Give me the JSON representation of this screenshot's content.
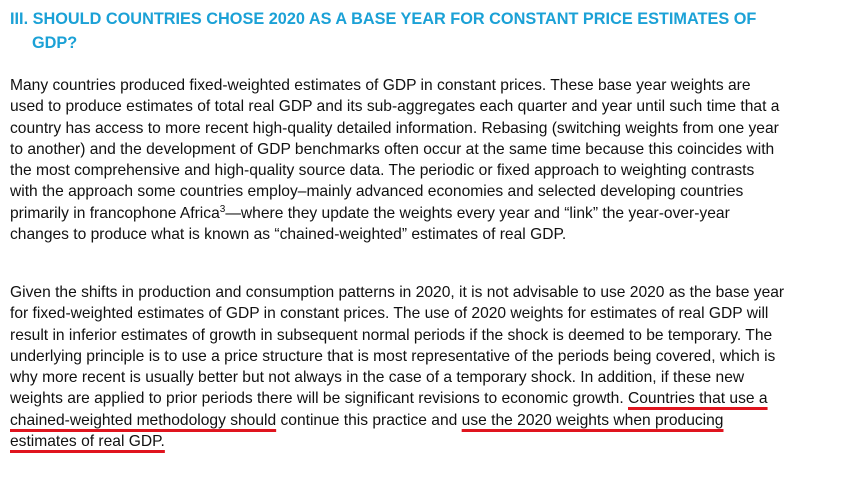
{
  "heading": {
    "line1": "III. SHOULD COUNTRIES CHOSE 2020 AS A BASE YEAR FOR CONSTANT PRICE ESTIMATES OF",
    "line2": "GDP?"
  },
  "paragraph1": {
    "l1": "Many countries produced fixed-weighted estimates of GDP in constant prices. These base year weights are",
    "l2": "used to produce estimates of total real GDP and its sub-aggregates each quarter and year until such time that a",
    "l3": "country has access to more recent high-quality detailed information. Rebasing (switching weights from one year",
    "l4": "to another) and the development of GDP benchmarks often occur at the same time because this coincides with",
    "l5": "the most comprehensive and high-quality source data. The periodic or fixed approach to weighting contrasts",
    "l6": "with the approach some countries employ–mainly advanced economies and selected developing countries",
    "l7_a": "primarily in francophone Africa",
    "l7_sup": "3",
    "l7_b": "—where they update the weights every year and “link” the year-over-year",
    "l8": "changes to produce what is known as “chained-weighted” estimates of real GDP."
  },
  "paragraph2": {
    "l1": "Given the shifts in production and consumption patterns in 2020, it is not advisable to use 2020 as the base year",
    "l2": "for fixed-weighted estimates of GDP in constant prices. The use of 2020 weights for estimates of real GDP will",
    "l3": "result in inferior estimates of growth in subsequent normal periods if the shock is deemed to be temporary. The",
    "l4": "underlying principle is to use a price structure that is most representative of the periods being covered, which is",
    "l5": "why more recent is usually better but not always in the case of a temporary shock. In addition, if these new",
    "l6_a": "weights are applied to prior periods there will be significant revisions to economic growth. ",
    "l6_u": "Countries that use a",
    "l7_u1": "chained-weighted methodology should",
    "l7_b": " continue this practice and ",
    "l7_u2": "use the 2020 weights when producing",
    "l8_u": "estimates of real GDP."
  },
  "colors": {
    "heading": "#1ba1d6",
    "underline": "#e0141e",
    "text": "#111111"
  }
}
